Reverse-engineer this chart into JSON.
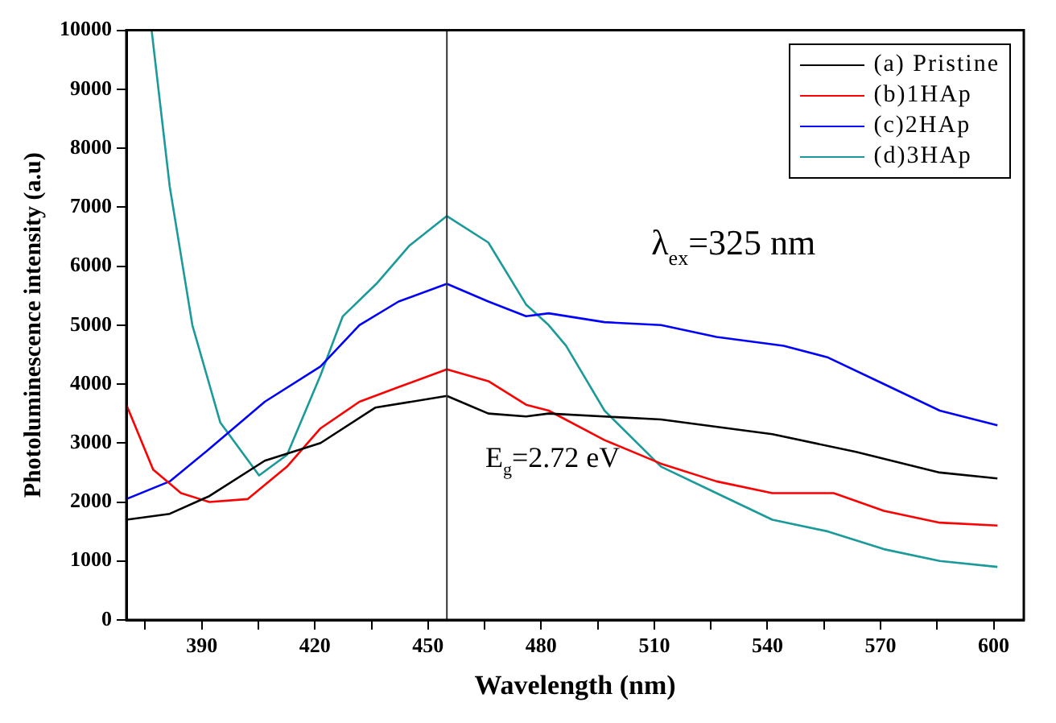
{
  "chart_data": {
    "type": "line",
    "xlabel": "Wavelength (nm)",
    "ylabel": "Photoluminescence intensity (a.u)",
    "xlim": [
      370,
      608
    ],
    "ylim": [
      0,
      10000
    ],
    "xticks": [
      {
        "value": 375,
        "label": null
      },
      390,
      {
        "value": 405,
        "label": null
      },
      420,
      {
        "value": 435,
        "label": null
      },
      450,
      {
        "value": 465,
        "label": null
      },
      480,
      {
        "value": 495,
        "label": null
      },
      510,
      {
        "value": 525,
        "label": null
      },
      540,
      {
        "value": 555,
        "label": null
      },
      570,
      {
        "value": 585,
        "label": null
      },
      600
    ],
    "yticks": [
      0,
      1000,
      2000,
      3000,
      4000,
      5000,
      6000,
      7000,
      8000,
      9000,
      10000
    ],
    "grid": false,
    "legend": "top right",
    "marker": "none",
    "line_style": "solid",
    "ref_lines": [
      {
        "axis": "x",
        "value": 455,
        "color": "#333333"
      }
    ],
    "annotations": [
      "λ$_{ex}$=325 nm",
      "E$_{g}$=2.72 eV"
    ],
    "series": [
      {
        "name": "(a) Pristine",
        "color": "#000000",
        "x": [
          370,
          381.5,
          392,
          406.7,
          421.5,
          436,
          455,
          466,
          476,
          482,
          511.8,
          541.3,
          563.5,
          585.7,
          601
        ],
        "values": [
          1700,
          1800,
          2100,
          2700,
          3000,
          3600,
          3800,
          3500,
          3450,
          3500,
          3400,
          3150,
          2850,
          2500,
          2400
        ]
      },
      {
        "name": "(b)1HAp",
        "color": "#ff0000",
        "x": [
          370,
          377.1,
          384.5,
          392,
          402.2,
          412.6,
          421.5,
          431.8,
          442.2,
          455,
          466,
          476,
          482,
          496.8,
          511.8,
          526.5,
          541.3,
          557.6,
          570.9,
          585.7,
          601
        ],
        "values": [
          3650,
          2550,
          2150,
          2000,
          2050,
          2600,
          3250,
          3700,
          3950,
          4250,
          4050,
          3650,
          3550,
          3050,
          2650,
          2350,
          2150,
          2150,
          1850,
          1650,
          1600
        ]
      },
      {
        "name": "(c)2HAp",
        "color": "#0000ff",
        "x": [
          370,
          381.5,
          392,
          406.7,
          421.5,
          431.8,
          442.2,
          455,
          466,
          476,
          482,
          496.8,
          511.8,
          526.5,
          544.3,
          556.1,
          570.9,
          585.7,
          601
        ],
        "values": [
          2050,
          2350,
          2900,
          3700,
          4300,
          5000,
          5400,
          5700,
          5400,
          5150,
          5200,
          5050,
          5000,
          4800,
          4650,
          4450,
          4000,
          3550,
          3300
        ]
      },
      {
        "name": "(d)3HAp",
        "color": "#1a9a9a",
        "x": [
          376.7,
          381.5,
          387.5,
          394.9,
          405.2,
          412.6,
          421.5,
          427.4,
          436.3,
          445.1,
          455,
          466,
          476,
          482,
          486.6,
          496.8,
          511.8,
          526.5,
          541.3,
          556.1,
          570.9,
          585.7,
          601
        ],
        "values": [
          10000,
          7350,
          5000,
          3350,
          2450,
          2800,
          4150,
          5150,
          5700,
          6350,
          6850,
          6400,
          5350,
          5000,
          4650,
          3550,
          2600,
          2150,
          1700,
          1500,
          1200,
          1000,
          900
        ]
      }
    ]
  }
}
